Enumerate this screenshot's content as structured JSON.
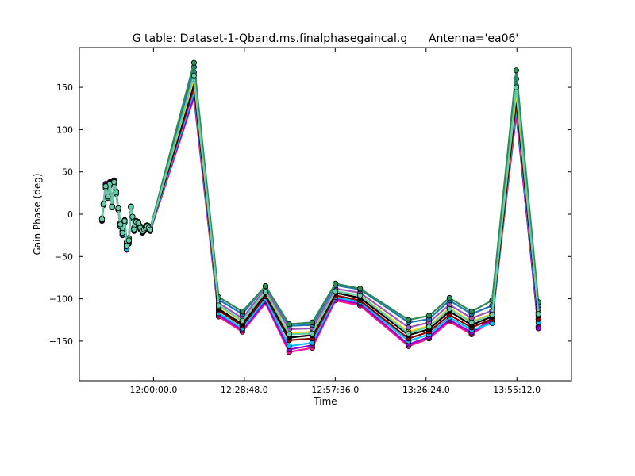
{
  "chart_data": {
    "type": "line",
    "title": "G table: Dataset-1-Qband.ms.finalphasegaincal.g      Antenna='ea06'",
    "xlabel": "Time",
    "ylabel": "Gain Phase (deg)",
    "x_unit": "seconds of day",
    "xlim": [
      41790,
      51150
    ],
    "ylim": [
      -197,
      197
    ],
    "x_ticks": [
      {
        "value": 43200,
        "label": "12:00:00.0"
      },
      {
        "value": 44928,
        "label": "12:28:48.0"
      },
      {
        "value": 46656,
        "label": "12:57:36.0"
      },
      {
        "value": 48384,
        "label": "13:26:24.0"
      },
      {
        "value": 50112,
        "label": "13:55:12.0"
      }
    ],
    "y_ticks": [
      {
        "value": 150,
        "label": "150"
      },
      {
        "value": 100,
        "label": "100"
      },
      {
        "value": 50,
        "label": "50"
      },
      {
        "value": 0,
        "label": "0"
      },
      {
        "value": -50,
        "label": "−50"
      },
      {
        "value": -100,
        "label": "−100"
      },
      {
        "value": -150,
        "label": "−150"
      }
    ],
    "grid": false,
    "legend": "none",
    "x": [
      42220,
      42250,
      42290,
      42330,
      42370,
      42410,
      42450,
      42490,
      42530,
      42570,
      42610,
      42650,
      42690,
      42730,
      42770,
      42800,
      42830,
      42870,
      42910,
      42950,
      42990,
      43020,
      43050,
      43080,
      43110,
      43140,
      43970,
      44440,
      44890,
      45330,
      45780,
      46220,
      46660,
      47130,
      48050,
      48440,
      48830,
      49250,
      49640,
      50100,
      50520
    ],
    "series": [
      {
        "color": "#ff1493",
        "values": [
          -8,
          12,
          35,
          20,
          38,
          8,
          40,
          25,
          5,
          -15,
          -25,
          -10,
          -42,
          -35,
          8,
          -5,
          -20,
          -10,
          -12,
          -18,
          -22,
          -20,
          -18,
          -16,
          -18,
          -20,
          138,
          -121,
          -139,
          -105,
          -163,
          -158,
          -102,
          -108,
          -156,
          -147,
          -127,
          -142,
          -126,
          118,
          -133
        ]
      },
      {
        "color": "#9400d3",
        "values": [
          -7,
          13,
          36,
          22,
          38,
          10,
          40,
          27,
          6,
          -13,
          -24,
          -9,
          -40,
          -33,
          9,
          -4,
          -19,
          -9,
          -11,
          -17,
          -21,
          -19,
          -17,
          -15,
          -17,
          -19,
          140,
          -119,
          -137,
          -103,
          -160,
          -155,
          -100,
          -106,
          -154,
          -145,
          -125,
          -140,
          -124,
          121,
          -135
        ]
      },
      {
        "color": "#00bfff",
        "values": [
          -6,
          12,
          34,
          21,
          37,
          9,
          39,
          26,
          6,
          -14,
          -24,
          -10,
          -41,
          -34,
          9,
          -4,
          -19,
          -10,
          -11,
          -17,
          -21,
          -19,
          -17,
          -16,
          -17,
          -19,
          145,
          -117,
          -135,
          -100,
          -156,
          -152,
          -98,
          -104,
          -150,
          -142,
          -122,
          -137,
          -129,
          126,
          -128
        ]
      },
      {
        "color": "#8b0000",
        "values": [
          -6,
          12,
          34,
          21,
          36,
          9,
          38,
          26,
          7,
          -12,
          -22,
          -8,
          -38,
          -32,
          9,
          -3,
          -18,
          -9,
          -11,
          -16,
          -20,
          -18,
          -16,
          -15,
          -16,
          -18,
          150,
          -114,
          -132,
          -97,
          -149,
          -147,
          -96,
          -102,
          -147,
          -139,
          -119,
          -134,
          -124,
          132,
          -124
        ]
      },
      {
        "color": "#000000",
        "values": [
          -5,
          11,
          33,
          21,
          36,
          9,
          38,
          26,
          7,
          -12,
          -22,
          -8,
          -37,
          -31,
          9,
          -3,
          -18,
          -9,
          -10,
          -16,
          -20,
          -18,
          -16,
          -14,
          -16,
          -18,
          155,
          -112,
          -130,
          -94,
          -146,
          -143,
          -93,
          -99,
          -143,
          -136,
          -115,
          -131,
          -121,
          138,
          -120
        ]
      },
      {
        "color": "#ffd700",
        "values": [
          -5,
          11,
          33,
          20,
          35,
          9,
          37,
          25,
          7,
          -11,
          -21,
          -7,
          -36,
          -30,
          9,
          -3,
          -17,
          -8,
          -10,
          -15,
          -19,
          -17,
          -15,
          -14,
          -15,
          -17,
          160,
          -109,
          -127,
          -91,
          -141,
          -139,
          -91,
          -96,
          -139,
          -132,
          -111,
          -127,
          -118,
          144,
          -116
        ]
      },
      {
        "color": "#9b59b6",
        "values": [
          -5,
          11,
          32,
          20,
          35,
          9,
          37,
          25,
          7,
          -11,
          -21,
          -7,
          -35,
          -29,
          9,
          -3,
          -17,
          -8,
          -10,
          -15,
          -19,
          -17,
          -15,
          -14,
          -15,
          -17,
          168,
          -105,
          -123,
          -88,
          -136,
          -135,
          -88,
          -93,
          -134,
          -128,
          -107,
          -123,
          -114,
          152,
          -112
        ]
      },
      {
        "color": "#1f77b4",
        "values": [
          -5,
          11,
          32,
          20,
          34,
          9,
          36,
          25,
          7,
          -11,
          -20,
          -7,
          -34,
          -28,
          9,
          -3,
          -16,
          -8,
          -9,
          -15,
          -19,
          -17,
          -15,
          -13,
          -15,
          -17,
          174,
          -101,
          -118,
          -85,
          -132,
          -131,
          -84,
          -89,
          -128,
          -124,
          -102,
          -118,
          -108,
          160,
          -108
        ]
      },
      {
        "color": "#2e8b57",
        "values": [
          -5,
          11,
          31,
          19,
          34,
          8,
          36,
          24,
          7,
          -10,
          -20,
          -7,
          -33,
          -28,
          8,
          -3,
          -16,
          -8,
          -9,
          -14,
          -18,
          -16,
          -14,
          -13,
          -14,
          -16,
          179,
          -98,
          -115,
          -85,
          -130,
          -128,
          -82,
          -88,
          -125,
          -120,
          -99,
          -115,
          -102,
          170,
          -104
        ]
      },
      {
        "color": "#66cdaa",
        "values": [
          -6,
          12,
          33,
          21,
          36,
          9,
          38,
          26,
          7,
          -12,
          -22,
          -8,
          -37,
          -31,
          9,
          -3,
          -18,
          -9,
          -10,
          -16,
          -20,
          -18,
          -16,
          -14,
          -16,
          -18,
          164,
          -108,
          -126,
          -92,
          -142,
          -141,
          -91,
          -96,
          -141,
          -133,
          -112,
          -128,
          -119,
          150,
          -118
        ]
      }
    ]
  }
}
